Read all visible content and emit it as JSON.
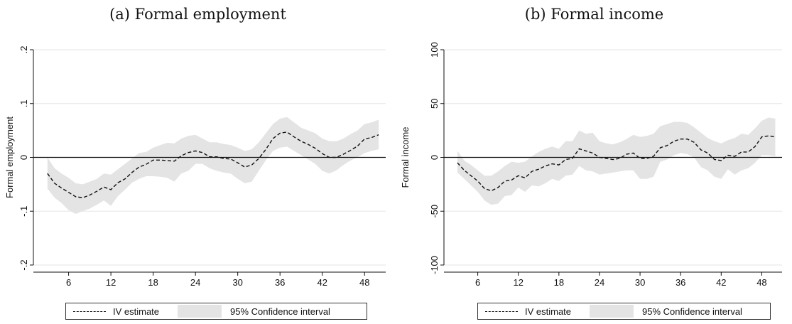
{
  "chart_data": [
    {
      "type": "line",
      "title": "(a) Formal employment",
      "ylabel": "Formal employment",
      "xlabel": "",
      "xlim": [
        1,
        51
      ],
      "ylim": [
        -0.2,
        0.2
      ],
      "xticks": [
        6,
        12,
        18,
        24,
        30,
        36,
        42,
        48
      ],
      "yticks": [
        -0.2,
        -0.1,
        0,
        0.1,
        0.2
      ],
      "ytick_labels": [
        "-.2",
        "-.1",
        "0",
        ".1",
        ".2"
      ],
      "grid": true,
      "legend": {
        "position": "bottom",
        "entries": [
          "IV estimate",
          "95% Confidence interval"
        ]
      },
      "series": [
        {
          "name": "IV estimate",
          "style": "dashed",
          "x": [
            3,
            4,
            5,
            6,
            7,
            8,
            9,
            10,
            11,
            12,
            13,
            14,
            15,
            16,
            17,
            18,
            19,
            20,
            21,
            22,
            23,
            24,
            25,
            26,
            27,
            28,
            29,
            30,
            31,
            32,
            33,
            34,
            35,
            36,
            37,
            38,
            39,
            40,
            41,
            42,
            43,
            44,
            45,
            46,
            47,
            48,
            49,
            50
          ],
          "y": [
            -0.03,
            -0.048,
            -0.057,
            -0.065,
            -0.073,
            -0.075,
            -0.07,
            -0.063,
            -0.055,
            -0.06,
            -0.047,
            -0.04,
            -0.028,
            -0.018,
            -0.013,
            -0.005,
            -0.005,
            -0.006,
            -0.007,
            0.003,
            0.009,
            0.012,
            0.009,
            0.001,
            0.001,
            -0.002,
            -0.003,
            -0.01,
            -0.018,
            -0.014,
            -0.002,
            0.015,
            0.035,
            0.045,
            0.047,
            0.038,
            0.03,
            0.024,
            0.017,
            0.007,
            0.0,
            0.0,
            0.006,
            0.013,
            0.021,
            0.034,
            0.037,
            0.042
          ]
        },
        {
          "name": "95% Confidence interval",
          "style": "band",
          "x": [
            3,
            4,
            5,
            6,
            7,
            8,
            9,
            10,
            11,
            12,
            13,
            14,
            15,
            16,
            17,
            18,
            19,
            20,
            21,
            22,
            23,
            24,
            25,
            26,
            27,
            28,
            29,
            30,
            31,
            32,
            33,
            34,
            35,
            36,
            37,
            38,
            39,
            40,
            41,
            42,
            43,
            44,
            45,
            46,
            47,
            48,
            49,
            50
          ],
          "lower": [
            -0.058,
            -0.075,
            -0.085,
            -0.098,
            -0.105,
            -0.1,
            -0.095,
            -0.088,
            -0.08,
            -0.09,
            -0.072,
            -0.06,
            -0.047,
            -0.04,
            -0.035,
            -0.035,
            -0.036,
            -0.038,
            -0.045,
            -0.03,
            -0.025,
            -0.012,
            -0.012,
            -0.02,
            -0.025,
            -0.028,
            -0.03,
            -0.04,
            -0.048,
            -0.045,
            -0.025,
            -0.005,
            0.012,
            0.018,
            0.02,
            0.012,
            0.004,
            -0.004,
            -0.012,
            -0.025,
            -0.03,
            -0.024,
            -0.014,
            -0.006,
            0.0,
            0.008,
            0.012,
            0.015
          ],
          "upper": [
            0.0,
            -0.02,
            -0.03,
            -0.038,
            -0.048,
            -0.05,
            -0.045,
            -0.04,
            -0.03,
            -0.032,
            -0.022,
            -0.012,
            -0.002,
            0.008,
            0.01,
            0.018,
            0.023,
            0.027,
            0.026,
            0.035,
            0.04,
            0.042,
            0.035,
            0.028,
            0.028,
            0.025,
            0.023,
            0.018,
            0.012,
            0.015,
            0.028,
            0.045,
            0.062,
            0.072,
            0.075,
            0.065,
            0.055,
            0.05,
            0.045,
            0.035,
            0.03,
            0.03,
            0.035,
            0.043,
            0.05,
            0.062,
            0.065,
            0.07
          ]
        }
      ]
    },
    {
      "type": "line",
      "title": "(b) Formal income",
      "ylabel": "Formal income",
      "xlabel": "",
      "xlim": [
        1,
        51
      ],
      "ylim": [
        -100,
        100
      ],
      "xticks": [
        6,
        12,
        18,
        24,
        30,
        36,
        42,
        48
      ],
      "yticks": [
        -100,
        -50,
        0,
        50,
        100
      ],
      "ytick_labels": [
        "-100",
        "-50",
        "0",
        "50",
        "100"
      ],
      "grid": true,
      "legend": {
        "position": "bottom",
        "entries": [
          "IV estimate",
          "95% Confidence interval"
        ]
      },
      "series": [
        {
          "name": "IV estimate",
          "style": "dashed",
          "x": [
            3,
            4,
            5,
            6,
            7,
            8,
            9,
            10,
            11,
            12,
            13,
            14,
            15,
            16,
            17,
            18,
            19,
            20,
            21,
            22,
            23,
            24,
            25,
            26,
            27,
            28,
            29,
            30,
            31,
            32,
            33,
            34,
            35,
            36,
            37,
            38,
            39,
            40,
            41,
            42,
            43,
            44,
            45,
            46,
            47,
            48,
            49,
            50
          ],
          "y": [
            -5,
            -12,
            -17,
            -22,
            -29,
            -31,
            -28,
            -22,
            -21,
            -17,
            -19,
            -13,
            -11,
            -8,
            -6,
            -7,
            -2,
            -1,
            8,
            6,
            4,
            0,
            -1,
            -2,
            -1,
            3,
            4,
            -1,
            -1,
            1,
            9,
            11,
            15,
            17,
            17,
            14,
            7,
            4,
            -2,
            -3,
            2,
            1,
            5,
            5,
            10,
            19,
            20,
            19
          ]
        },
        {
          "name": "95% Confidence interval",
          "style": "band",
          "x": [
            3,
            4,
            5,
            6,
            7,
            8,
            9,
            10,
            11,
            12,
            13,
            14,
            15,
            16,
            17,
            18,
            19,
            20,
            21,
            22,
            23,
            24,
            25,
            26,
            27,
            28,
            29,
            30,
            31,
            32,
            33,
            34,
            35,
            36,
            37,
            38,
            39,
            40,
            41,
            42,
            43,
            44,
            45,
            46,
            47,
            48,
            49,
            50
          ],
          "lower": [
            -14,
            -20,
            -26,
            -32,
            -40,
            -44,
            -43,
            -36,
            -35,
            -28,
            -32,
            -26,
            -27,
            -24,
            -20,
            -22,
            -17,
            -16,
            -8,
            -12,
            -13,
            -16,
            -15,
            -14,
            -13,
            -12,
            -12,
            -20,
            -20,
            -18,
            -4,
            -2,
            2,
            4,
            3,
            0,
            -9,
            -12,
            -18,
            -20,
            -11,
            -16,
            -12,
            -10,
            -5,
            2,
            2,
            1
          ],
          "upper": [
            6,
            -3,
            -7,
            -12,
            -17,
            -17,
            -13,
            -8,
            -4,
            -5,
            -4,
            1,
            5,
            8,
            10,
            8,
            15,
            15,
            25,
            22,
            23,
            15,
            13,
            12,
            14,
            17,
            21,
            19,
            20,
            22,
            29,
            31,
            33,
            33,
            32,
            28,
            23,
            18,
            15,
            13,
            16,
            18,
            22,
            21,
            27,
            34,
            37,
            36
          ]
        }
      ]
    }
  ]
}
